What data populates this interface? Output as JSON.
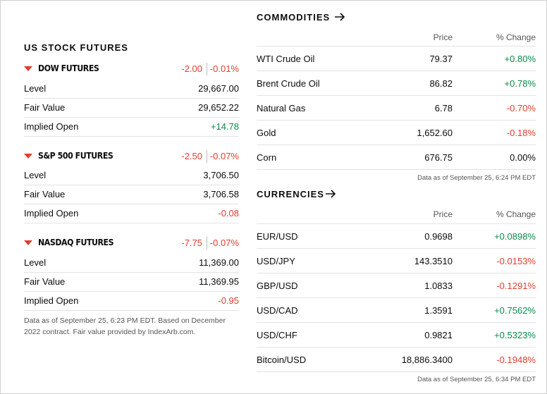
{
  "futures": {
    "title": "US STOCK FUTURES",
    "items": [
      {
        "name": "DOW FUTURES",
        "change": "-2.00",
        "pct": "-0.01%",
        "rows": [
          {
            "label": "Level",
            "value": "29,667.00",
            "tone": ""
          },
          {
            "label": "Fair Value",
            "value": "29,652.22",
            "tone": ""
          },
          {
            "label": "Implied Open",
            "value": "+14.78",
            "tone": "pos"
          }
        ]
      },
      {
        "name": "S&P 500 FUTURES",
        "change": "-2.50",
        "pct": "-0.07%",
        "rows": [
          {
            "label": "Level",
            "value": "3,706.50",
            "tone": ""
          },
          {
            "label": "Fair Value",
            "value": "3,706.58",
            "tone": ""
          },
          {
            "label": "Implied Open",
            "value": "-0.08",
            "tone": "neg"
          }
        ]
      },
      {
        "name": "NASDAQ FUTURES",
        "change": "-7.75",
        "pct": "-0.07%",
        "rows": [
          {
            "label": "Level",
            "value": "11,369.00",
            "tone": ""
          },
          {
            "label": "Fair Value",
            "value": "11,369.95",
            "tone": ""
          },
          {
            "label": "Implied Open",
            "value": "-0.95",
            "tone": "neg"
          }
        ]
      }
    ],
    "note_line1": "Data as of September 25, 6:23 PM EDT. Based on December",
    "note_line2": "2022 contract. Fair value provided by IndexArb.com."
  },
  "commodities": {
    "title": "COMMODITIES",
    "price_header": "Price",
    "change_header": "% Change",
    "rows": [
      {
        "name": "WTI Crude Oil",
        "price": "79.37",
        "change": "+0.80%",
        "tone": "pos"
      },
      {
        "name": "Brent Crude Oil",
        "price": "86.82",
        "change": "+0.78%",
        "tone": "pos"
      },
      {
        "name": "Natural Gas",
        "price": "6.78",
        "change": "-0.70%",
        "tone": "neg"
      },
      {
        "name": "Gold",
        "price": "1,652.60",
        "change": "-0.18%",
        "tone": "neg"
      },
      {
        "name": "Corn",
        "price": "676.75",
        "change": "0.00%",
        "tone": ""
      }
    ],
    "as_of": "Data as of September 25, 6:24 PM EDT"
  },
  "currencies": {
    "title": "CURRENCIES",
    "price_header": "Price",
    "change_header": "% Change",
    "rows": [
      {
        "name": "EUR/USD",
        "price": "0.9698",
        "change": "+0.0898%",
        "tone": "pos"
      },
      {
        "name": "USD/JPY",
        "price": "143.3510",
        "change": "-0.0153%",
        "tone": "neg"
      },
      {
        "name": "GBP/USD",
        "price": "1.0833",
        "change": "-0.1291%",
        "tone": "neg"
      },
      {
        "name": "USD/CAD",
        "price": "1.3591",
        "change": "+0.7562%",
        "tone": "pos"
      },
      {
        "name": "USD/CHF",
        "price": "0.9821",
        "change": "+0.5323%",
        "tone": "pos"
      },
      {
        "name": "Bitcoin/USD",
        "price": "18,886.3400",
        "change": "-0.1948%",
        "tone": "neg"
      }
    ],
    "as_of": "Data as of September 25, 6:34 PM EDT"
  },
  "colors": {
    "positive": "#0c8a4c",
    "negative": "#e03e2d",
    "border": "#cfcfcf"
  }
}
